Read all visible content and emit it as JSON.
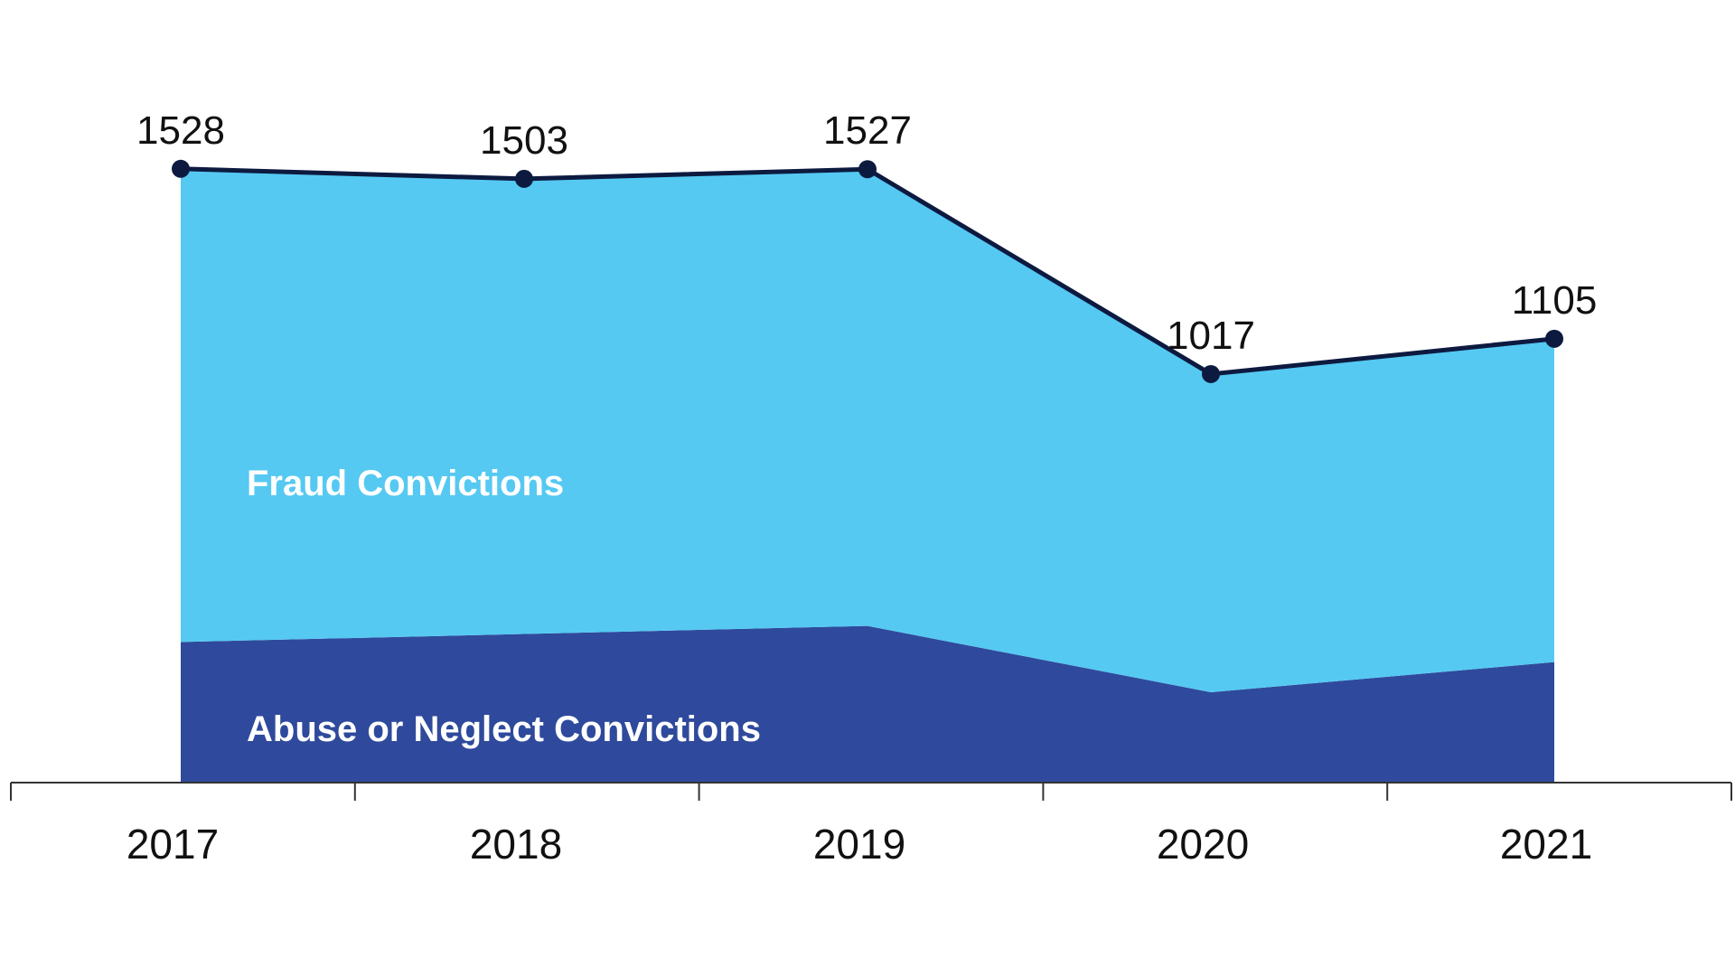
{
  "chart_data": {
    "type": "area",
    "title": "",
    "xlabel": "",
    "ylabel": "",
    "categories": [
      "2017",
      "2018",
      "2019",
      "2020",
      "2021"
    ],
    "ylim": [
      0,
      1900
    ],
    "grid": false,
    "legend": "none",
    "series": [
      {
        "name": "Abuse or Neglect Convictions",
        "values": [
          350,
          370,
          390,
          225,
          300
        ],
        "color": "#2F4A9C"
      },
      {
        "name": "Fraud Convictions",
        "values": [
          1178,
          1133,
          1137,
          792,
          805
        ],
        "color": "#55C9F2"
      }
    ],
    "totals": {
      "values": [
        1528,
        1503,
        1527,
        1017,
        1105
      ],
      "color": "#0D1A40",
      "data_labels": [
        "1528",
        "1503",
        "1527",
        "1017",
        "1105"
      ]
    }
  }
}
